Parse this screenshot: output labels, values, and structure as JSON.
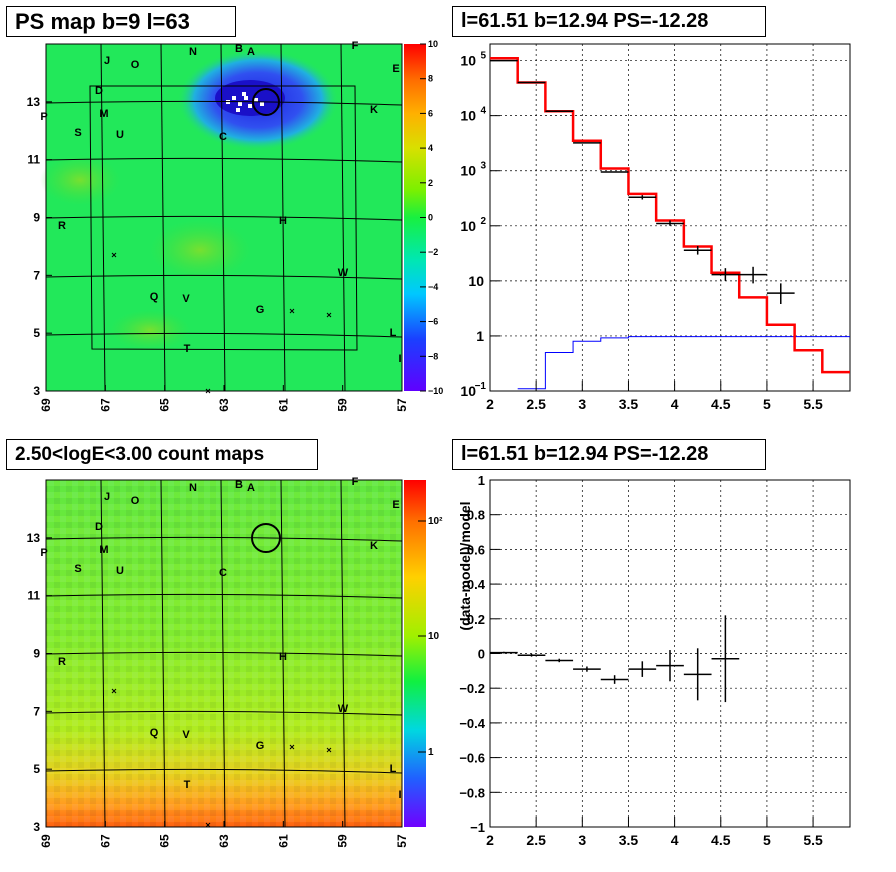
{
  "colors": {
    "background": "#ffffff",
    "axis": "#000000",
    "model_line": "#ff0000",
    "data_line": "#000000",
    "background_line": "#0000ff"
  },
  "panels": {
    "ps_map": {
      "title": "PS map b=9 l=63"
    },
    "spectrum": {
      "title": "l=61.51 b=12.94 PS=-12.28"
    },
    "count_map": {
      "title": "2.50<logE<3.00 count maps"
    },
    "residual": {
      "title": "l=61.51 b=12.94 PS=-12.28"
    }
  },
  "chart_data": [
    {
      "type": "heatmap",
      "title": "PS map b=9 l=63",
      "x_ticks": [
        "69",
        "67",
        "65",
        "63",
        "61",
        "59",
        "57"
      ],
      "y_ticks": [
        "3",
        "5",
        "7",
        "9",
        "11",
        "13"
      ],
      "xlim": [
        69,
        57
      ],
      "ylim": [
        3,
        15
      ],
      "colorbar_ticks": [
        "10",
        "8",
        "6",
        "4",
        "2",
        "0",
        "−2",
        "−4",
        "−6",
        "−8",
        "−10"
      ],
      "colorbar_range": [
        -10,
        10
      ],
      "source_labels": [
        "J",
        "O",
        "N",
        "B",
        "A",
        "F",
        "E",
        "D",
        "K",
        "M",
        "P",
        "S",
        "U",
        "C",
        "H",
        "R",
        "W",
        "Q",
        "V",
        "G",
        "L",
        "T",
        "I"
      ],
      "circle_center": {
        "l": 61.51,
        "b": 12.94
      }
    },
    {
      "type": "line",
      "title": "l=61.51 b=12.94 PS=-12.28",
      "x_ticks": [
        "2",
        "2.5",
        "3",
        "3.5",
        "4",
        "4.5",
        "5",
        "5.5"
      ],
      "xlim": [
        2,
        5.9
      ],
      "y_scale": "log",
      "ylim": [
        0.1,
        200000
      ],
      "y_ticks": [
        {
          "base": "10",
          "exp": "5"
        },
        {
          "base": "10",
          "exp": "4"
        },
        {
          "base": "10",
          "exp": "3"
        },
        {
          "base": "10",
          "exp": "2"
        },
        {
          "base": "10",
          "exp": ""
        },
        {
          "base": "1",
          "exp": ""
        },
        {
          "base": "10",
          "exp": "−1"
        }
      ],
      "grid": true,
      "model_edges": [
        2.0,
        2.3,
        2.6,
        2.9,
        3.2,
        3.5,
        3.8,
        4.1,
        4.4,
        4.7,
        5.0,
        5.3,
        5.6,
        5.9
      ],
      "model_values": [
        110000,
        40000,
        12000,
        3500,
        1100,
        380,
        125,
        42,
        14,
        5,
        1.6,
        0.55,
        0.22
      ],
      "background_edges": [
        2.3,
        2.6,
        2.9,
        3.2,
        3.5,
        5.9
      ],
      "background_values": [
        0.11,
        0.5,
        0.8,
        0.92,
        0.97
      ],
      "data_points": [
        {
          "x": 2.15,
          "y": 100000,
          "xerr": 0.15,
          "ylo": 100000,
          "yhi": 100000
        },
        {
          "x": 2.45,
          "y": 40000,
          "xerr": 0.15,
          "ylo": 40000,
          "yhi": 40000
        },
        {
          "x": 2.75,
          "y": 12000,
          "xerr": 0.15,
          "ylo": 12000,
          "yhi": 12000
        },
        {
          "x": 3.05,
          "y": 3200,
          "xerr": 0.15,
          "ylo": 3200,
          "yhi": 3200
        },
        {
          "x": 3.35,
          "y": 950,
          "xerr": 0.15,
          "ylo": 950,
          "yhi": 950
        },
        {
          "x": 3.65,
          "y": 330,
          "xerr": 0.15,
          "ylo": 300,
          "yhi": 360
        },
        {
          "x": 3.95,
          "y": 110,
          "xerr": 0.15,
          "ylo": 100,
          "yhi": 125
        },
        {
          "x": 4.25,
          "y": 36,
          "xerr": 0.15,
          "ylo": 30,
          "yhi": 43
        },
        {
          "x": 4.55,
          "y": 13,
          "xerr": 0.15,
          "ylo": 10,
          "yhi": 17
        },
        {
          "x": 4.85,
          "y": 13,
          "xerr": 0.15,
          "ylo": 9,
          "yhi": 18
        },
        {
          "x": 5.15,
          "y": 6,
          "xerr": 0.15,
          "ylo": 3.8,
          "yhi": 9
        }
      ]
    },
    {
      "type": "heatmap",
      "title": "2.50<logE<3.00 count maps",
      "x_ticks": [
        "69",
        "67",
        "65",
        "63",
        "61",
        "59",
        "57"
      ],
      "y_ticks": [
        "3",
        "5",
        "7",
        "9",
        "11",
        "13"
      ],
      "xlim": [
        69,
        57
      ],
      "ylim": [
        3,
        15
      ],
      "colorbar_scale": "log",
      "colorbar_ticks": [
        "10²",
        "10",
        "1"
      ],
      "source_labels": [
        "J",
        "O",
        "N",
        "B",
        "A",
        "F",
        "E",
        "D",
        "K",
        "M",
        "P",
        "S",
        "U",
        "C",
        "H",
        "R",
        "W",
        "Q",
        "V",
        "G",
        "L",
        "T",
        "I"
      ],
      "circle_center": {
        "l": 61.51,
        "b": 12.94
      }
    },
    {
      "type": "scatter",
      "title": "l=61.51 b=12.94 PS=-12.28",
      "ylabel": "(data-model)/model",
      "x_ticks": [
        "2",
        "2.5",
        "3",
        "3.5",
        "4",
        "4.5",
        "5",
        "5.5"
      ],
      "y_ticks": [
        "1",
        "0.8",
        "0.6",
        "0.4",
        "0.2",
        "0",
        "−0.2",
        "−0.4",
        "−0.6",
        "−0.8",
        "−1"
      ],
      "xlim": [
        2,
        5.9
      ],
      "ylim": [
        -1,
        1
      ],
      "grid": true,
      "points": [
        {
          "x": 2.15,
          "y": 0.005,
          "xerr": 0.15,
          "yerr": 0.005
        },
        {
          "x": 2.45,
          "y": -0.01,
          "xerr": 0.15,
          "yerr": 0.008
        },
        {
          "x": 2.75,
          "y": -0.04,
          "xerr": 0.15,
          "yerr": 0.01
        },
        {
          "x": 3.05,
          "y": -0.09,
          "xerr": 0.15,
          "yerr": 0.015
        },
        {
          "x": 3.35,
          "y": -0.15,
          "xerr": 0.15,
          "yerr": 0.025
        },
        {
          "x": 3.65,
          "y": -0.09,
          "xerr": 0.15,
          "yerr": 0.045
        },
        {
          "x": 3.95,
          "y": -0.07,
          "xerr": 0.15,
          "yerr": 0.09
        },
        {
          "x": 4.25,
          "y": -0.12,
          "xerr": 0.15,
          "yerr": 0.15
        },
        {
          "x": 4.55,
          "y": -0.03,
          "xerr": 0.15,
          "yerr": 0.25
        }
      ]
    }
  ]
}
